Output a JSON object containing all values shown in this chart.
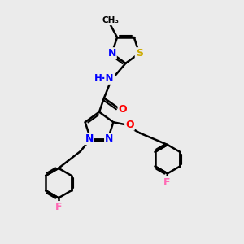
{
  "bg_color": "#ebebeb",
  "bond_color": "#000000",
  "bond_width": 1.8,
  "atom_colors": {
    "N": "#0000ff",
    "O": "#ff0000",
    "S": "#ccaa00",
    "F": "#ff69b4",
    "C": "#000000",
    "H": "#555555"
  },
  "font_size": 9,
  "fig_size": [
    3.0,
    3.0
  ],
  "dpi": 100
}
